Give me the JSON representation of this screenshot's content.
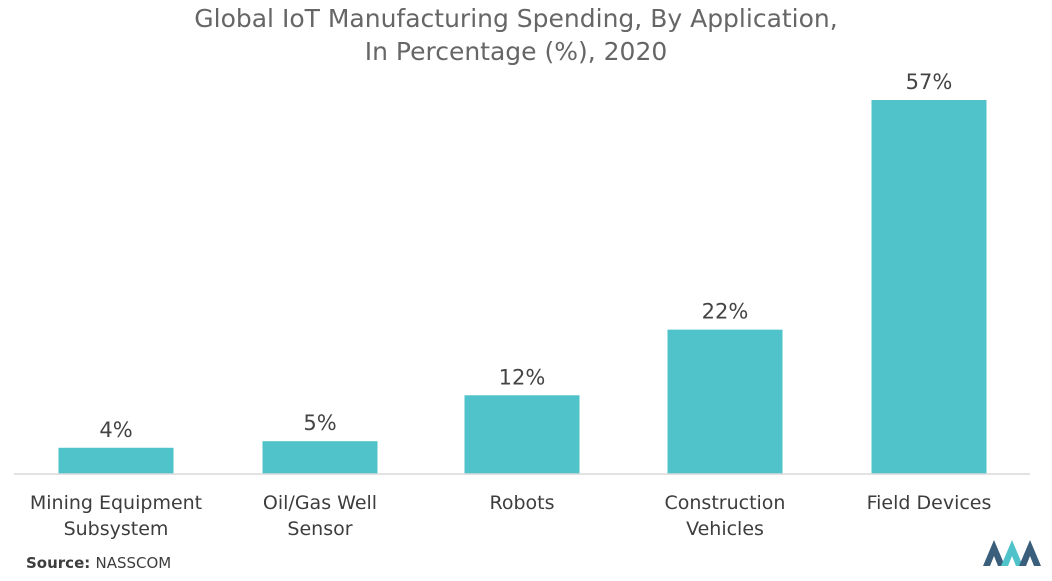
{
  "chart_data": {
    "type": "bar",
    "title_lines": [
      "Global IoT Manufacturing Spending, By  Application,",
      "In Percentage (%), 2020"
    ],
    "categories": [
      [
        "Mining Equipment",
        "Subsystem"
      ],
      [
        "Oil/Gas Well",
        "Sensor"
      ],
      [
        "Robots"
      ],
      [
        "Construction",
        "Vehicles"
      ],
      [
        "Field Devices"
      ]
    ],
    "values": [
      4,
      5,
      12,
      22,
      57
    ],
    "value_labels": [
      "4%",
      "5%",
      "12%",
      "22%",
      "57%"
    ],
    "ylim": [
      0,
      57
    ],
    "grid": false,
    "xlabel": "",
    "ylabel": ""
  },
  "source": {
    "label": "Source",
    "text": "NASSCOM"
  },
  "colors": {
    "bar": "#4fc3c9",
    "axis": "#d9d9d9",
    "title": "#666666",
    "logo_dark": "#3a5f7d",
    "logo_light": "#4fc3c9"
  },
  "logo": {
    "name": "Mordor Intelligence logo"
  }
}
